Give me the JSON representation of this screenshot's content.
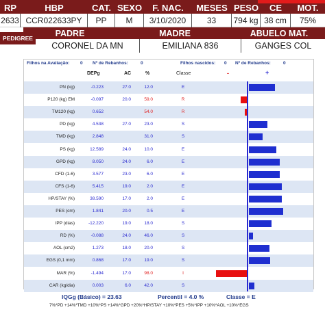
{
  "header": {
    "columns": [
      "RP",
      "HBP",
      "CAT.",
      "SEXO",
      "F. NAC.",
      "MESES",
      "PESO",
      "CE",
      "MOT."
    ],
    "values": [
      "2633",
      "CCR022633PY",
      "PP",
      "M",
      "3/10/2020",
      "33",
      "794 kg",
      "38 cm",
      "75%"
    ]
  },
  "pedigree": {
    "label": "PEDIGREE",
    "columns": [
      "PADRE",
      "MADRE",
      "ABUELO MAT."
    ],
    "values": [
      "CORONEL DA MN",
      "EMILIANA 836",
      "GANGES COL"
    ]
  },
  "summary": {
    "filhos_aval_label": "Filhos na Avaliação:",
    "filhos_aval_value": "0",
    "rebanhos_label_1": "Nº de Rebanhos:",
    "rebanhos_value_1": "0",
    "filhos_nasc_label": "Filhos nascidos:",
    "filhos_nasc_value": "0",
    "rebanhos_label_2": "Nº de Rebanhos:",
    "rebanhos_value_2": "0"
  },
  "table": {
    "headers": [
      "DEPg",
      "AC",
      "%",
      "Classe",
      "-",
      "+"
    ],
    "rows": [
      {
        "trait": "PN (kg)",
        "dep": "-0.223",
        "ac": "27.0",
        "pct": "12.0",
        "classe": "E",
        "red": false,
        "bar": 0.48
      },
      {
        "trait": "P120 (kg) EM",
        "dep": "-0.097",
        "ac": "20.0",
        "pct": "59.0",
        "classe": "R",
        "red": true,
        "bar": -0.12
      },
      {
        "trait": "TM120 (kg)",
        "dep": "0.652",
        "ac": "",
        "pct": "54.0",
        "classe": "R",
        "red": true,
        "bar": -0.05
      },
      {
        "trait": "PD (kg)",
        "dep": "4.538",
        "ac": "27.0",
        "pct": "23.0",
        "classe": "S",
        "red": false,
        "bar": 0.34
      },
      {
        "trait": "TMD (kg)",
        "dep": "2.848",
        "ac": "",
        "pct": "31.0",
        "classe": "S",
        "red": false,
        "bar": 0.25
      },
      {
        "trait": "PS (kg)",
        "dep": "12.589",
        "ac": "24.0",
        "pct": "10.0",
        "classe": "E",
        "red": false,
        "bar": 0.5
      },
      {
        "trait": "GPD (kg)",
        "dep": "8.050",
        "ac": "24.0",
        "pct": "6.0",
        "classe": "E",
        "red": false,
        "bar": 0.56
      },
      {
        "trait": "CFD (1-6)",
        "dep": "3.577",
        "ac": "23.0",
        "pct": "6.0",
        "classe": "E",
        "red": false,
        "bar": 0.56
      },
      {
        "trait": "CFS (1-6)",
        "dep": "5.415",
        "ac": "19.0",
        "pct": "2.0",
        "classe": "E",
        "red": false,
        "bar": 0.6
      },
      {
        "trait": "HP/STAY (%)",
        "dep": "38.590",
        "ac": "17.0",
        "pct": "2.0",
        "classe": "E",
        "red": false,
        "bar": 0.6
      },
      {
        "trait": "PES (cm)",
        "dep": "1.841",
        "ac": "20.0",
        "pct": "0.5",
        "classe": "E",
        "red": false,
        "bar": 0.62
      },
      {
        "trait": "IPP (dias)",
        "dep": "-12.220",
        "ac": "19.0",
        "pct": "18.0",
        "classe": "S",
        "red": false,
        "bar": 0.41
      },
      {
        "trait": "RD (%)",
        "dep": "-0.088",
        "ac": "24.0",
        "pct": "46.0",
        "classe": "S",
        "red": false,
        "bar": 0.07
      },
      {
        "trait": "AOL (cm2)",
        "dep": "1.273",
        "ac": "18.0",
        "pct": "20.0",
        "classe": "S",
        "red": false,
        "bar": 0.38
      },
      {
        "trait": "EGS (0,1 mm)",
        "dep": "0.868",
        "ac": "17.0",
        "pct": "19.0",
        "classe": "S",
        "red": false,
        "bar": 0.39
      },
      {
        "trait": "MAR (%)",
        "dep": "-1.494",
        "ac": "17.0",
        "pct": "98.0",
        "classe": "I",
        "red": true,
        "bar": -0.58
      },
      {
        "trait": "CAR (kg/dia)",
        "dep": "0.003",
        "ac": "6.0",
        "pct": "42.0",
        "classe": "S",
        "red": false,
        "bar": 0.1
      }
    ]
  },
  "footer": {
    "iqg": "IQGg (Básico) = 23.63",
    "percentil": "Percentil = 4.0 %",
    "classe": "Classe = E",
    "formula": "7%*PD +14%*TMD +10%*PS +14%*GPD +20%*HP/STAY +10%*PES +5%*IPP +10%*AOL +10%*EGS"
  },
  "colors": {
    "header_bg": "#7a1b1b",
    "accent_red": "#e31b1b",
    "bar_blue": "#1f2fd0",
    "bar_red": "#e81010",
    "stripe": "#dde6f4"
  }
}
